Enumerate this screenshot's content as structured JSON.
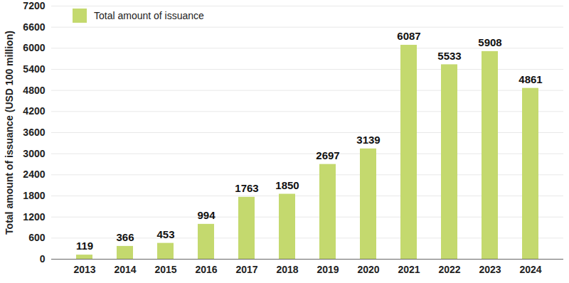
{
  "chart_data": {
    "type": "bar",
    "y_label": "Total amount of issuance (USD 100 million)",
    "categories": [
      "2013",
      "2014",
      "2015",
      "2016",
      "2017",
      "2018",
      "2019",
      "2020",
      "2021",
      "2022",
      "2023",
      "2024"
    ],
    "series": [
      {
        "name": "Total amount of issuance",
        "color": "#c4d96e",
        "values": [
          119,
          366,
          453,
          994,
          1763,
          1850,
          2697,
          3139,
          6087,
          5533,
          5908,
          4861
        ]
      }
    ],
    "ylim": [
      0,
      7200
    ],
    "yticks": [
      0,
      600,
      1200,
      1800,
      2400,
      3000,
      3600,
      4200,
      4800,
      5400,
      6000,
      6600,
      7200
    ],
    "grid": true,
    "legend": "upper left",
    "data_labels": true
  }
}
